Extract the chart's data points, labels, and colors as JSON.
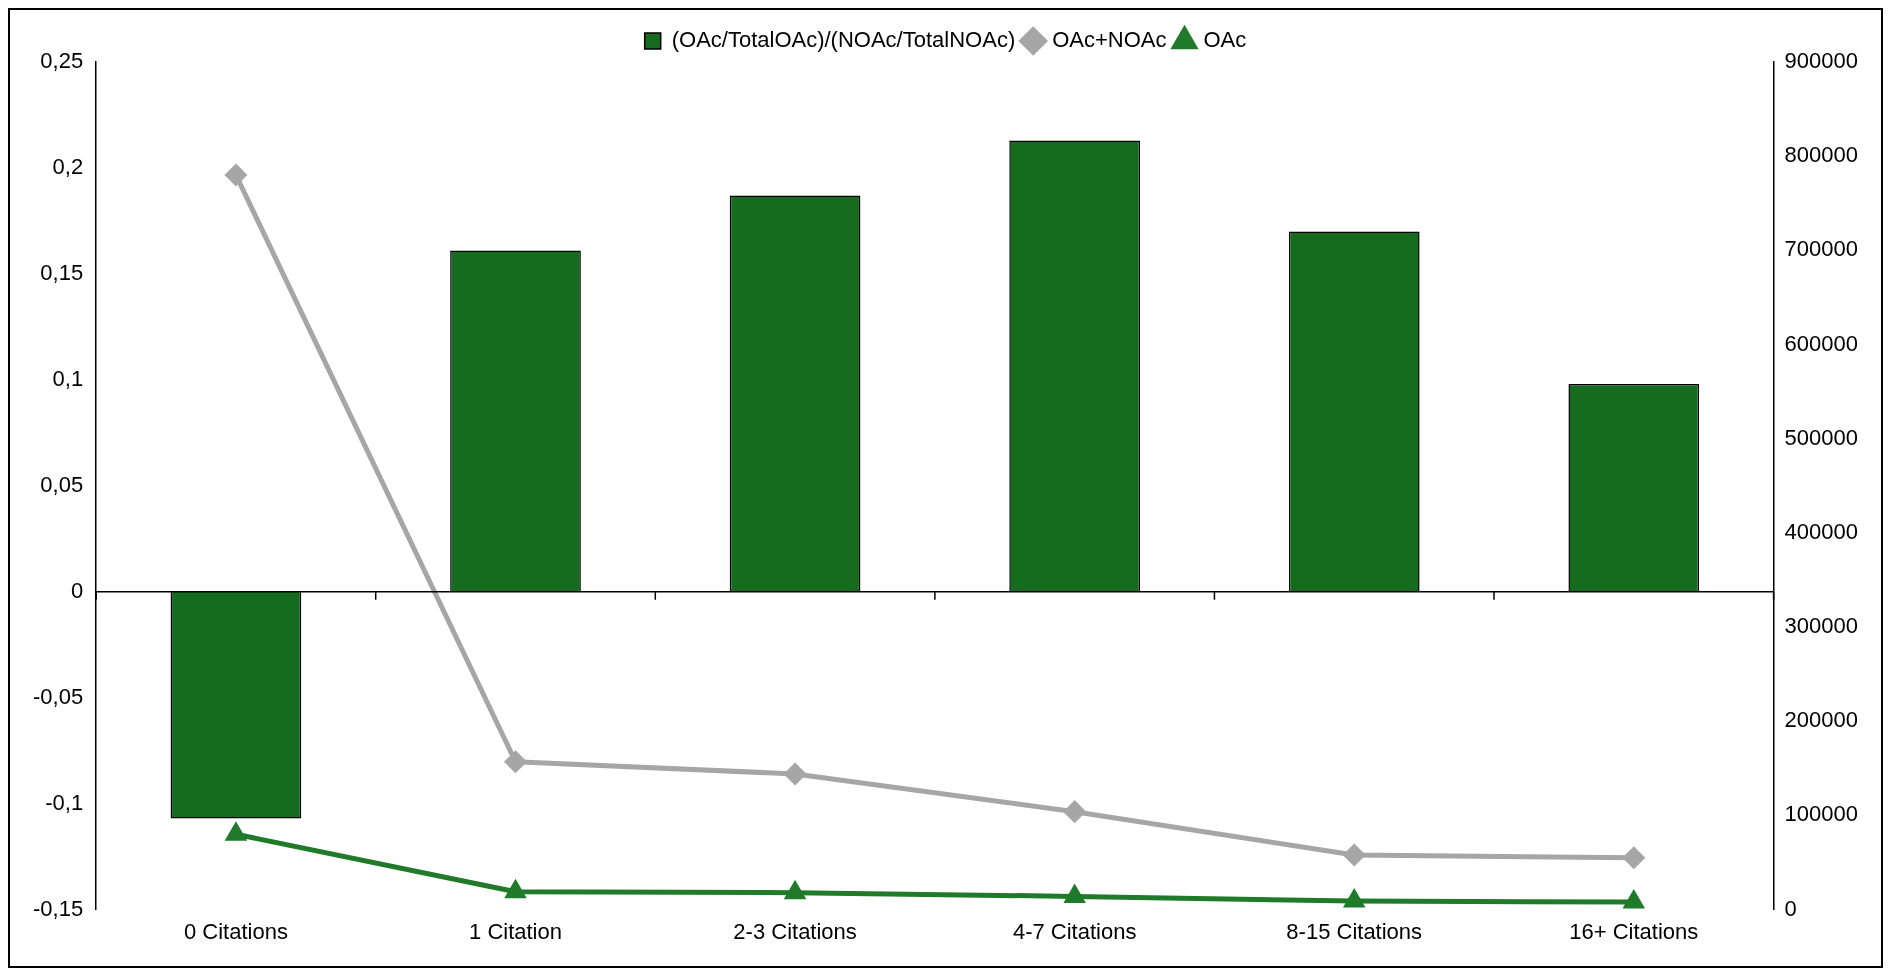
{
  "chart_data": {
    "type": "bar",
    "categories": [
      "0 Citations",
      "1 Citation",
      "2-3 Citations",
      "4-7 Citations",
      "8-15 Citations",
      "16+ Citations"
    ],
    "series": [
      {
        "name": "(OAc/TotalOAc)/(NOAc/TotalNOAc)",
        "color": "#156b1e",
        "values": [
          -0.107,
          0.161,
          0.187,
          0.213,
          0.17,
          0.098
        ]
      },
      {
        "name": "OAc+NOAc",
        "type": "line",
        "axis": "y2",
        "color": "#a6a6a6",
        "marker": "diamond",
        "values": [
          780000,
          157000,
          144000,
          104000,
          58000,
          55000
        ]
      },
      {
        "name": "OAc",
        "type": "line",
        "axis": "y2",
        "color": "#1f7a2a",
        "marker": "triangle",
        "values": [
          80000,
          19000,
          18000,
          14000,
          9000,
          8000
        ]
      }
    ],
    "ylim": [
      -0.15,
      0.25
    ],
    "yticks": [
      {
        "value": -0.15,
        "label": "-0,15"
      },
      {
        "value": -0.1,
        "label": "-0,1"
      },
      {
        "value": -0.05,
        "label": "-0,05"
      },
      0,
      {
        "value": 0.05,
        "label": "0,05"
      },
      {
        "value": 0.1,
        "label": "0,1"
      },
      {
        "value": 0.15,
        "label": "0,15"
      },
      {
        "value": 0.2,
        "label": "0,2"
      },
      {
        "value": 0.25,
        "label": "0,25"
      }
    ],
    "y2lim": [
      0,
      900000
    ],
    "y2ticks": [
      0,
      100000,
      200000,
      300000,
      400000,
      500000,
      600000,
      700000,
      800000,
      900000
    ],
    "ref_lines": [
      {
        "axis": "y",
        "value": 0,
        "color": "#000000"
      }
    ],
    "grid": false,
    "legend": "top"
  }
}
